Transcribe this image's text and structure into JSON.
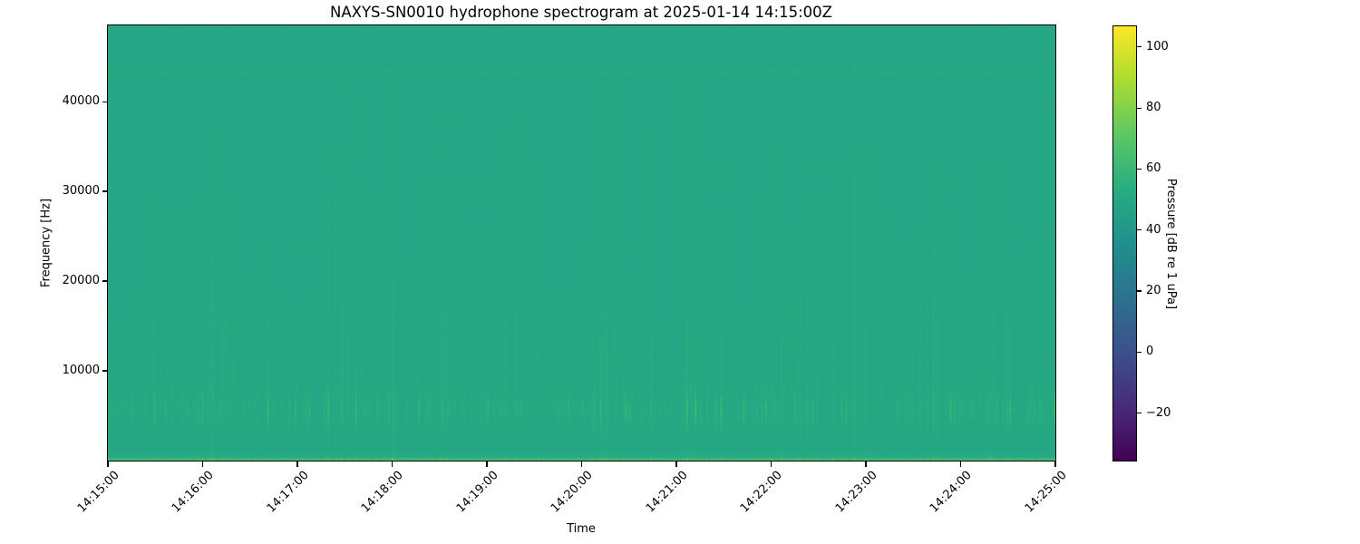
{
  "title": "NAXYS-SN0010 hydrophone spectrogram at 2025-01-14 14:15:00Z",
  "chart_data": {
    "type": "heatmap",
    "title": "NAXYS-SN0010 hydrophone spectrogram at 2025-01-14 14:15:00Z",
    "xlabel": "Time",
    "ylabel": "Frequency [Hz]",
    "x_tick_labels": [
      "14:15:00",
      "14:16:00",
      "14:17:00",
      "14:18:00",
      "14:19:00",
      "14:20:00",
      "14:21:00",
      "14:22:00",
      "14:23:00",
      "14:24:00",
      "14:25:00"
    ],
    "x_range": [
      "14:15:00",
      "14:25:00"
    ],
    "y_ticks": [
      10000,
      20000,
      30000,
      40000
    ],
    "y_tick_labels": [
      "10000",
      "20000",
      "30000",
      "40000"
    ],
    "ylim": [
      0,
      48500
    ],
    "grid": false,
    "legend": "none (colorbar on right)",
    "colorbar": {
      "label": "Pressure [dB re 1 uPa]",
      "ticks": [
        100,
        80,
        60,
        40,
        20,
        0,
        -20
      ],
      "tick_labels": [
        "100",
        "80",
        "60",
        "40",
        "20",
        "0",
        "−20"
      ],
      "vmin": -35.6,
      "vmax": 106.8,
      "colormap": "viridis",
      "colormap_stops": [
        {
          "pos": 0.0,
          "color": "#440154"
        },
        {
          "pos": 0.125,
          "color": "#472c7a"
        },
        {
          "pos": 0.25,
          "color": "#3b518b"
        },
        {
          "pos": 0.375,
          "color": "#2c718e"
        },
        {
          "pos": 0.5,
          "color": "#21908d"
        },
        {
          "pos": 0.625,
          "color": "#27ad81"
        },
        {
          "pos": 0.75,
          "color": "#5cc863"
        },
        {
          "pos": 0.875,
          "color": "#aadc32"
        },
        {
          "pos": 1.0,
          "color": "#fde725"
        }
      ]
    },
    "content": {
      "background_db": 49.4,
      "background_color": "#1fa088",
      "features": [
        {
          "id": "broadband-background",
          "db": 50,
          "extent": "entire time-frequency field, teal (viridis ~0.6)"
        },
        {
          "id": "low-frequency-bright-band",
          "freq_hz": [
            0,
            1600
          ],
          "peak_db": 66,
          "description": "bright green band hugging the bottom edge of the plot"
        },
        {
          "id": "transient-vertical-striations",
          "freq_hz": [
            1000,
            22000
          ],
          "peak_db": 67,
          "description": "many narrow vertical impulsive events across the whole 10-minute record, brightest dashes near 4000-7000 Hz"
        },
        {
          "id": "faint-tonal-band",
          "freq_hz": 43300,
          "db": 51,
          "description": "very faint scalloped horizontal line near 43 kHz"
        }
      ]
    },
    "render": {
      "seed": 42,
      "base_db": 49.4,
      "noise_db": 1.3
    }
  }
}
